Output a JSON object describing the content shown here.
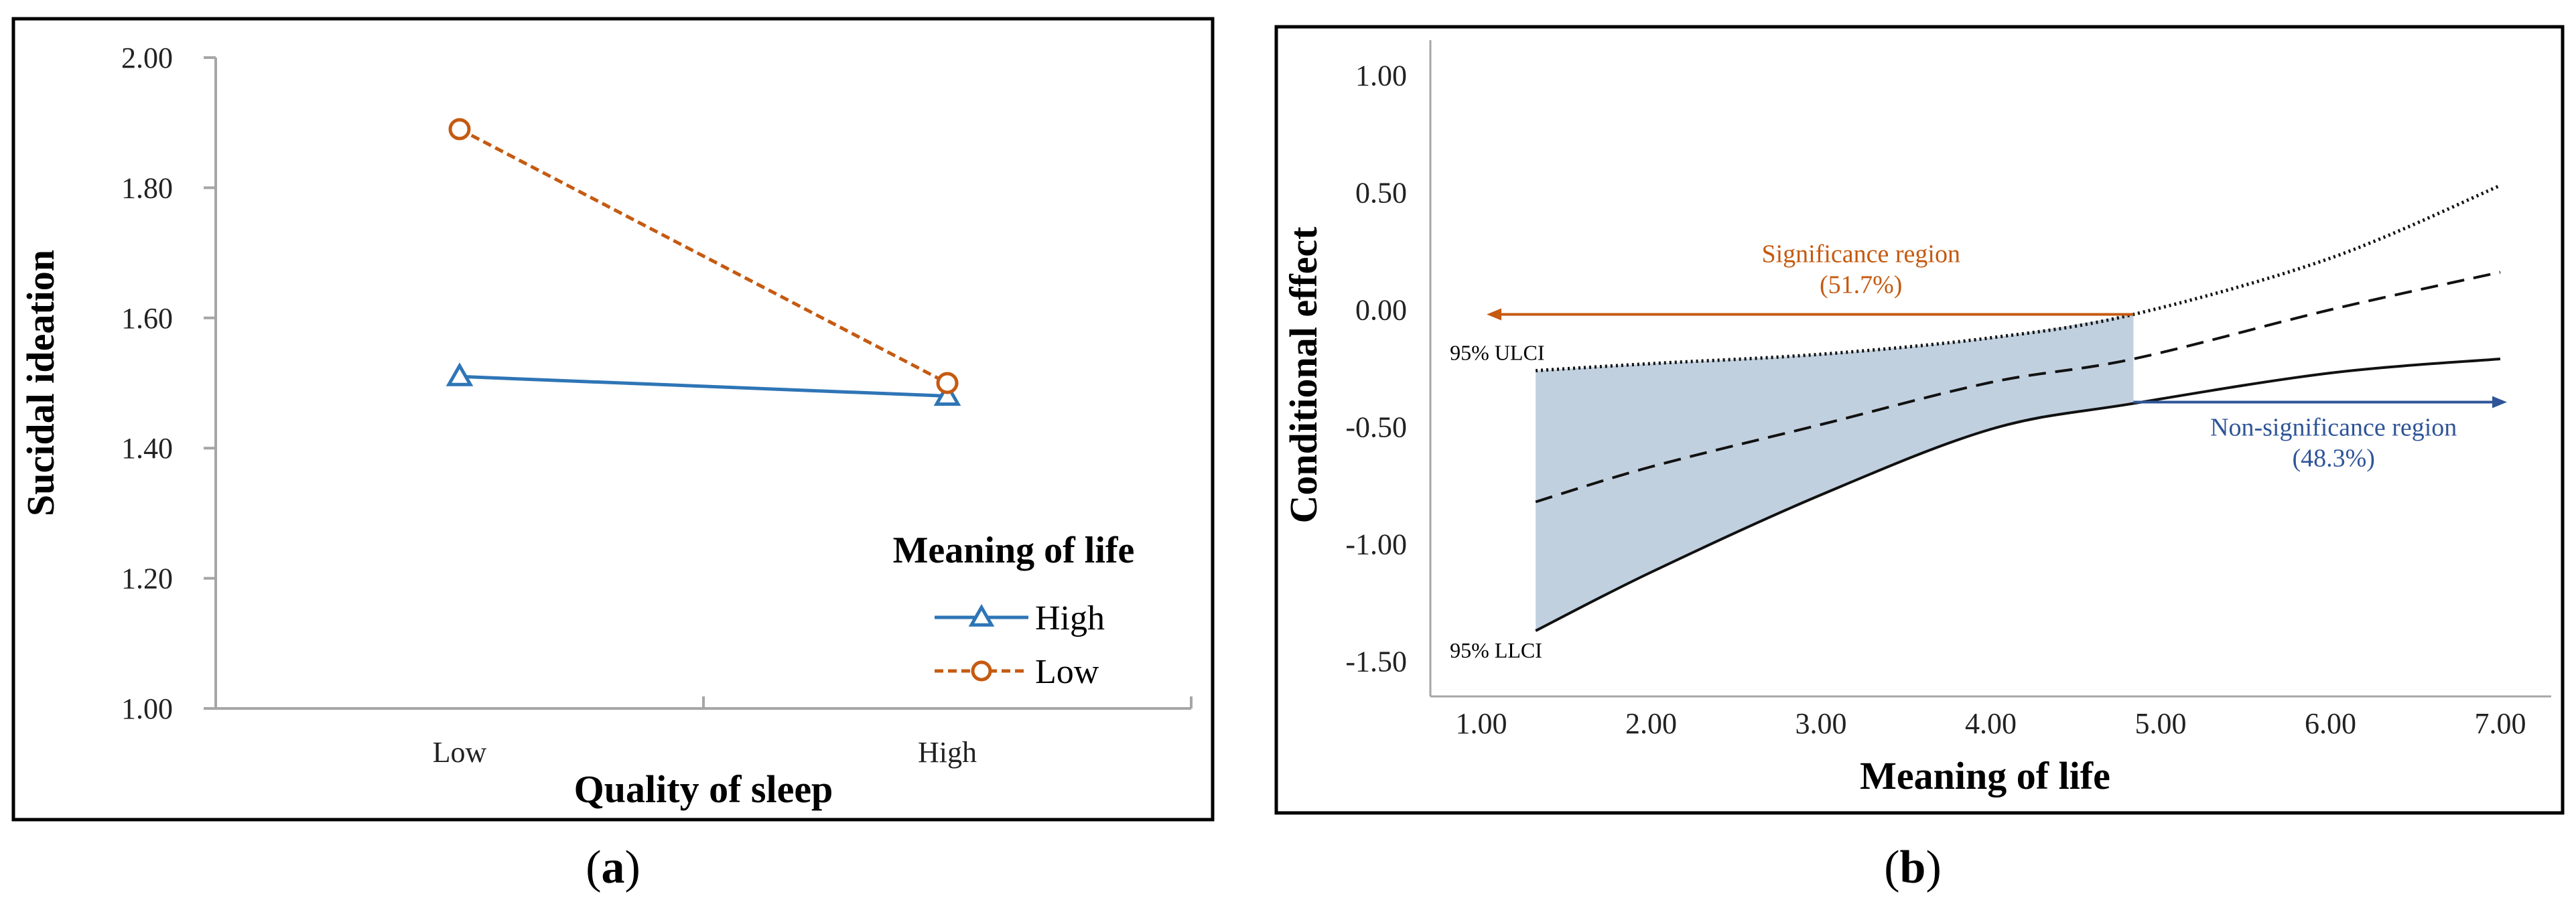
{
  "chart_data": [
    {
      "type": "line",
      "panel_label": "(a)",
      "panel_letter": "a",
      "xlabel": "Quality of sleep",
      "ylabel": "Sucidal ideation",
      "categories": [
        "Low",
        "High"
      ],
      "ylim": [
        1.0,
        2.0
      ],
      "yticks": [
        "1.00",
        "1.20",
        "1.40",
        "1.60",
        "1.80",
        "2.00"
      ],
      "legend": {
        "title": "Meaning of life",
        "position": "bottom-right"
      },
      "series": [
        {
          "name": "High",
          "values": [
            1.51,
            1.48
          ],
          "color": "#2E75B6",
          "marker": "triangle",
          "dash": "solid"
        },
        {
          "name": "Low",
          "values": [
            1.89,
            1.5
          ],
          "color": "#C55A11",
          "marker": "circle",
          "dash": "dashed"
        }
      ]
    },
    {
      "type": "line",
      "panel_label": "(b)",
      "panel_letter": "b",
      "xlabel": "Meaning of life",
      "ylabel": "Conditional effect",
      "xlim": [
        0.7,
        7.3
      ],
      "ylim": [
        -1.65,
        1.15
      ],
      "xticks": [
        "1.00",
        "2.00",
        "3.00",
        "4.00",
        "5.00",
        "6.00",
        "7.00"
      ],
      "yticks": [
        "1.00",
        "0.50",
        "0.00",
        "-0.50",
        "-1.00",
        "-1.50"
      ],
      "x": [
        1.32,
        2.0,
        3.0,
        4.0,
        4.84,
        6.0,
        7.0
      ],
      "series": [
        {
          "name": "95% ULCI",
          "values": [
            -0.26,
            -0.23,
            -0.19,
            -0.12,
            -0.02,
            0.22,
            0.53
          ],
          "style": "dotted"
        },
        {
          "name": "Conditional effect",
          "values": [
            -0.82,
            -0.67,
            -0.49,
            -0.31,
            -0.21,
            0.0,
            0.16
          ],
          "style": "dashed"
        },
        {
          "name": "95% LLCI",
          "values": [
            -1.37,
            -1.12,
            -0.79,
            -0.51,
            -0.4,
            -0.27,
            -0.21
          ],
          "style": "solid"
        }
      ],
      "significance_boundary": 4.84,
      "annotations": {
        "ulci_label": "95% ULCI",
        "llci_label": "95% LLCI",
        "sig_label": "Significance region",
        "sig_pct": "(51.7%)",
        "nonsig_label": "Non-significance region",
        "nonsig_pct": "(48.3%)",
        "sig_color": "#C55A11",
        "nonsig_color": "#2F5597",
        "fill_color": "#C1D0DF"
      }
    }
  ]
}
